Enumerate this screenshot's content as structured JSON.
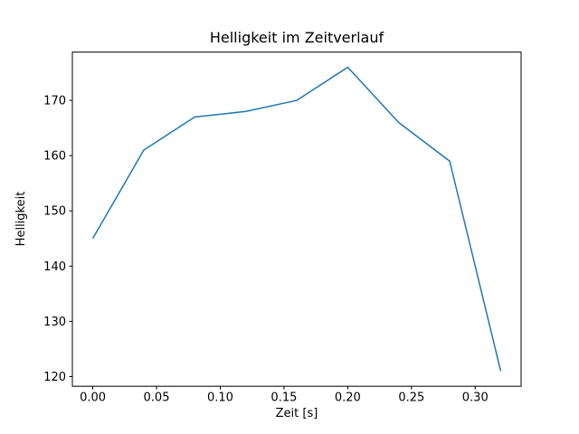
{
  "figure": {
    "background": "#ffffff"
  },
  "chart_data": {
    "type": "line",
    "title": "Helligkeit im Zeitverlauf",
    "xlabel": "Zeit [s]",
    "ylabel": "Helligkeit",
    "x": [
      0.0,
      0.04,
      0.08,
      0.12,
      0.16,
      0.2,
      0.24,
      0.28,
      0.32
    ],
    "values": [
      145,
      161,
      167,
      168,
      170,
      176,
      166,
      159,
      121
    ],
    "series_name": "Helligkeit",
    "line_color": "#1f77b4",
    "line_width": 1.5,
    "xlim": [
      -0.016,
      0.336
    ],
    "ylim": [
      118.25,
      178.75
    ],
    "xticks": [
      0.0,
      0.05,
      0.1,
      0.15,
      0.2,
      0.25,
      0.3
    ],
    "xtick_labels": [
      "0.00",
      "0.05",
      "0.10",
      "0.15",
      "0.20",
      "0.25",
      "0.30"
    ],
    "yticks": [
      120,
      130,
      140,
      150,
      160,
      170
    ],
    "ytick_labels": [
      "120",
      "130",
      "140",
      "150",
      "160",
      "170"
    ],
    "grid": false,
    "legend": null,
    "axes_color": "#000000"
  }
}
